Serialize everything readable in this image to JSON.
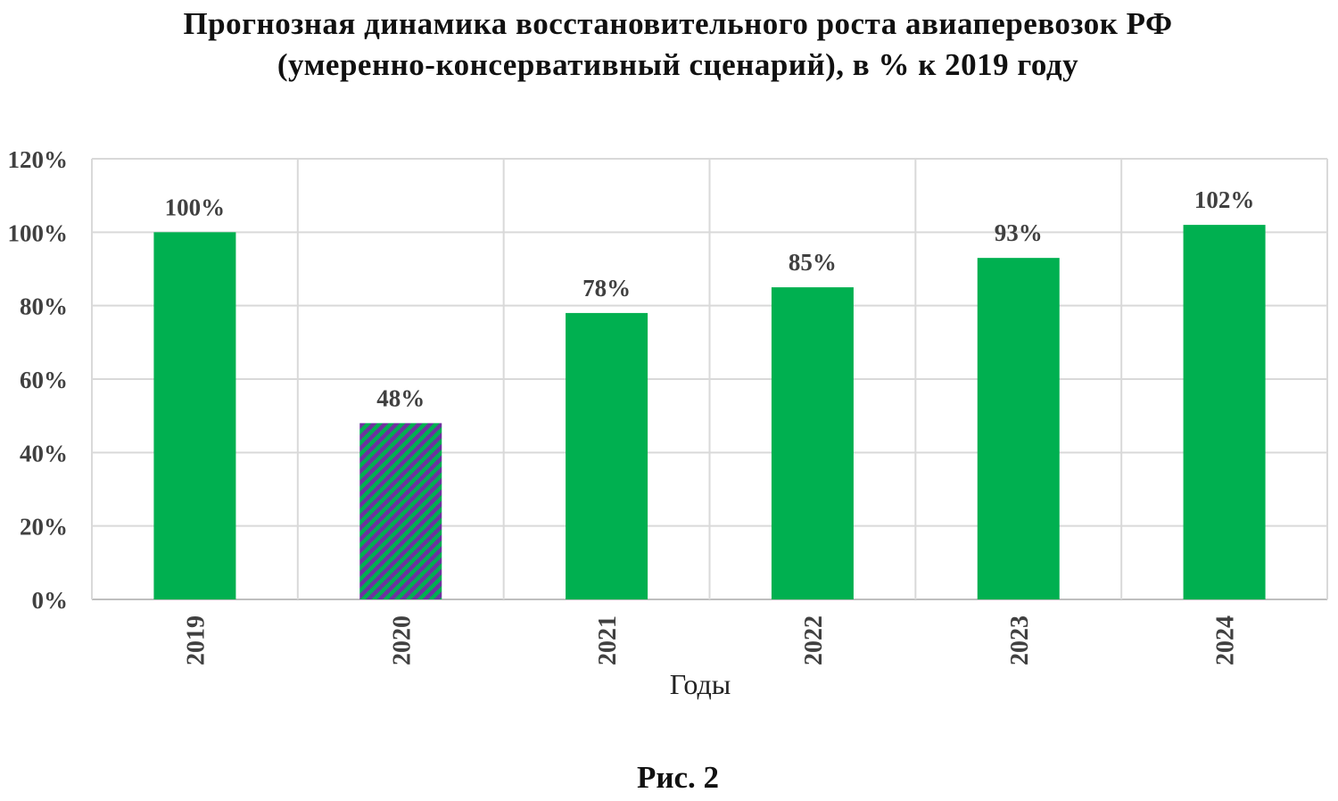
{
  "chart_data": {
    "type": "bar",
    "title_lines": [
      "Прогнозная динамика восстановительного роста авиаперевозок РФ",
      "(умеренно-консервативный сценарий), в % к 2019 году"
    ],
    "categories": [
      "2019",
      "2020",
      "2021",
      "2022",
      "2023",
      "2024"
    ],
    "values": [
      100,
      48,
      78,
      85,
      93,
      102
    ],
    "data_labels": [
      "100%",
      "48%",
      "78%",
      "85%",
      "93%",
      "102%"
    ],
    "xlabel": "Годы",
    "ylabel": "",
    "ylim": [
      0,
      120
    ],
    "yticks": [
      "0%",
      "20%",
      "40%",
      "60%",
      "80%",
      "100%",
      "120%"
    ],
    "grid": true,
    "legend": "none",
    "colors": {
      "bar": "#00b050",
      "highlight_stripe_a": "#7030a0",
      "highlight_stripe_b": "#00b050",
      "grid": "#d9d9d9"
    },
    "highlight_category": "2020"
  },
  "caption": "Рис. 2"
}
